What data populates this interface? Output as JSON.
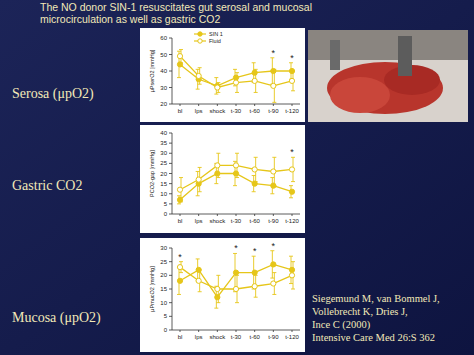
{
  "slide": {
    "title": [
      "The NO donor SIN-1 resuscitates gut serosal and mucosal",
      "microcirculation as well as gastric CO2"
    ],
    "citation": [
      "Siegemund M, van Bommel J,",
      "Vollebrecht K, Dries J,",
      "Ince C (2000)",
      "Intensive Care Med 26:S 362"
    ]
  },
  "chart_data": [
    {
      "type": "line",
      "title": "Serosa (μpO2)",
      "y_label": "μPserO2 [mmHg]",
      "categories": [
        "bl",
        "lps",
        "shock",
        "t-30",
        "t-60",
        "t-90",
        "t-120"
      ],
      "ylim": [
        20,
        60
      ],
      "yticks": [
        20,
        30,
        40,
        50,
        60
      ],
      "grid": false,
      "legend": "top-left",
      "significance": [
        null,
        null,
        null,
        null,
        null,
        "*",
        "*"
      ],
      "series": [
        {
          "name": "SIN 1",
          "color": "#e6c619",
          "marker": "circle",
          "line_style": "solid",
          "values": [
            44,
            35,
            31,
            36,
            39,
            40,
            40
          ],
          "errors": [
            8,
            6,
            5,
            5,
            6,
            8,
            5
          ]
        },
        {
          "name": "Fluid",
          "color": "#e6c619",
          "marker": "open-circle",
          "line_style": "solid",
          "values": [
            49,
            37,
            30,
            33,
            34,
            31,
            34
          ],
          "errors": [
            4,
            5,
            3,
            6,
            7,
            10,
            6
          ]
        }
      ]
    },
    {
      "type": "line",
      "title": "Gastric CO2",
      "y_label": "PCO2-gap [mmHg]",
      "categories": [
        "bl",
        "lps",
        "shock",
        "t-30",
        "t-60",
        "t-90",
        "t-120"
      ],
      "ylim": [
        0,
        40
      ],
      "yticks": [
        0,
        5,
        10,
        15,
        20,
        25,
        30,
        35,
        40
      ],
      "grid": false,
      "significance": [
        null,
        null,
        null,
        null,
        null,
        null,
        "*"
      ],
      "series": [
        {
          "name": "SIN 1",
          "color": "#e6c619",
          "marker": "circle",
          "line_style": "solid",
          "values": [
            7,
            15,
            20,
            20,
            15,
            14,
            11
          ],
          "errors": [
            2,
            6,
            5,
            6,
            4,
            4,
            3
          ]
        },
        {
          "name": "Fluid",
          "color": "#e6c619",
          "marker": "open-circle",
          "line_style": "solid",
          "values": [
            12,
            17,
            24,
            24,
            22,
            21,
            22
          ],
          "errors": [
            6,
            6,
            6,
            6,
            6,
            7,
            6
          ]
        }
      ]
    },
    {
      "type": "line",
      "title": "Mucosa (μpO2)",
      "y_label": "μPmucO2 [mmHg]",
      "categories": [
        "bl",
        "lps",
        "shock",
        "t-30",
        "t-60",
        "t-90",
        "t-120"
      ],
      "ylim": [
        0,
        30
      ],
      "yticks": [
        0,
        5,
        10,
        15,
        20,
        25,
        30
      ],
      "grid": false,
      "significance": [
        "*",
        null,
        null,
        "*",
        "*",
        "*",
        null
      ],
      "series": [
        {
          "name": "SIN 1",
          "color": "#e6c619",
          "marker": "circle",
          "line_style": "solid",
          "values": [
            18,
            22,
            12,
            21,
            21,
            24,
            22
          ],
          "errors": [
            5,
            4,
            4,
            7,
            6,
            5,
            5
          ]
        },
        {
          "name": "Fluid",
          "color": "#e6c619",
          "marker": "open-circle",
          "line_style": "solid",
          "values": [
            23,
            18,
            15,
            15,
            16,
            17,
            20
          ],
          "errors": [
            2,
            4,
            5,
            5,
            4,
            4,
            5
          ]
        }
      ]
    }
  ]
}
